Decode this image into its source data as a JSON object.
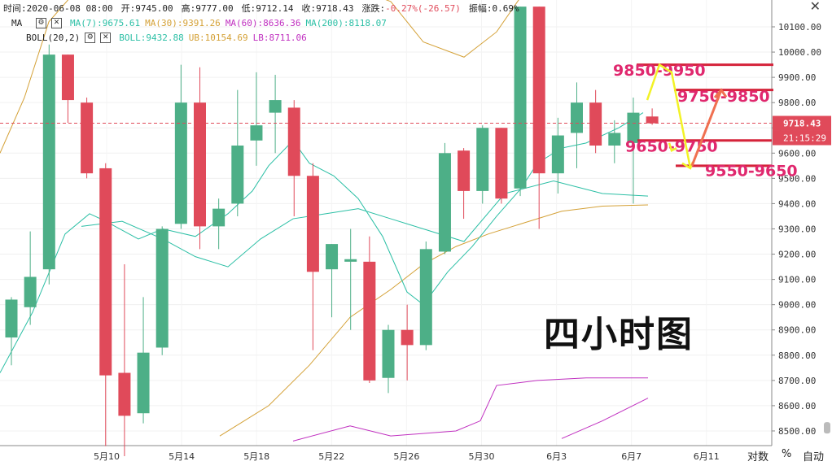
{
  "info": {
    "time_label": "时间:",
    "time": "2020-06-08 08:00",
    "open_label": "开:",
    "open": "9745.00",
    "high_label": "高:",
    "high": "9777.00",
    "low_label": "低:",
    "low": "9712.14",
    "close_label": "收:",
    "close": "9718.43",
    "change_label": "涨跌:",
    "change": "-0.27%(-26.57)",
    "amplitude_label": "振幅:",
    "amplitude": "0.69%"
  },
  "ma_row": {
    "name": "MA",
    "ma7": "MA(7):9675.61",
    "ma30": "MA(30):9391.26",
    "ma60": "MA(60):8636.36",
    "ma200": "MA(200):8118.07"
  },
  "boll_row": {
    "name": "BOLL(20,2)",
    "boll": "BOLL:9432.88",
    "ub": "UB:10154.69",
    "lb": "LB:8711.06"
  },
  "overlay_title": "四小时图",
  "bottom": {
    "log": "对数",
    "percent": "%",
    "auto": "自动"
  },
  "price_tag": {
    "price": "9718.43",
    "time": "21:15:29"
  },
  "colors": {
    "up": "#4daf87",
    "down": "#e04a5a",
    "ma7": "#2bbfa5",
    "ma30": "#d4a137",
    "ma60": "#c030c0",
    "boll": "#d4a137",
    "annot_red": "#d5233a",
    "annot_text": "#e0286e",
    "arrow_yellow": "#f2f226",
    "arrow_orange": "#f07050"
  },
  "chart_data": {
    "type": "candlestick",
    "xlabels": [
      "5月10",
      "5月14",
      "5月18",
      "5月22",
      "5月26",
      "5月30",
      "6月3",
      "6月7",
      "6月11"
    ],
    "ylabels": [
      "10100.00",
      "10000.00",
      "9900.00",
      "9800.00",
      "9700.00",
      "9600.00",
      "9500.00",
      "9400.00",
      "9300.00",
      "9200.00",
      "9100.00",
      "9000.00",
      "8900.00",
      "8800.00",
      "8700.00",
      "8600.00",
      "8500.00"
    ],
    "yrange": [
      8440,
      10200
    ],
    "candles": [
      {
        "o": 8870,
        "h": 9030,
        "l": 8760,
        "c": 9020
      },
      {
        "o": 8990,
        "h": 9290,
        "l": 8920,
        "c": 9110
      },
      {
        "o": 9140,
        "h": 10030,
        "l": 9080,
        "c": 9990
      },
      {
        "o": 9990,
        "h": 9990,
        "l": 9720,
        "c": 9810
      },
      {
        "o": 9800,
        "h": 9820,
        "l": 9500,
        "c": 9520
      },
      {
        "o": 9540,
        "h": 9560,
        "l": 8440,
        "c": 8720
      },
      {
        "o": 8730,
        "h": 9160,
        "l": 8400,
        "c": 8560
      },
      {
        "o": 8570,
        "h": 9030,
        "l": 8530,
        "c": 8810
      },
      {
        "o": 8830,
        "h": 9310,
        "l": 8800,
        "c": 9300
      },
      {
        "o": 9320,
        "h": 9950,
        "l": 9300,
        "c": 9800
      },
      {
        "o": 9800,
        "h": 9940,
        "l": 9220,
        "c": 9310
      },
      {
        "o": 9310,
        "h": 9420,
        "l": 9220,
        "c": 9380
      },
      {
        "o": 9400,
        "h": 9850,
        "l": 9350,
        "c": 9630
      },
      {
        "o": 9650,
        "h": 9920,
        "l": 9550,
        "c": 9710
      },
      {
        "o": 9760,
        "h": 9910,
        "l": 9600,
        "c": 9810
      },
      {
        "o": 9780,
        "h": 9810,
        "l": 9350,
        "c": 9510
      },
      {
        "o": 9510,
        "h": 9560,
        "l": 8820,
        "c": 9130
      },
      {
        "o": 9140,
        "h": 9240,
        "l": 8950,
        "c": 9240
      },
      {
        "o": 9170,
        "h": 9300,
        "l": 8900,
        "c": 9180
      },
      {
        "o": 9170,
        "h": 9270,
        "l": 8690,
        "c": 8700
      },
      {
        "o": 8710,
        "h": 8920,
        "l": 8650,
        "c": 8900
      },
      {
        "o": 8900,
        "h": 9000,
        "l": 8700,
        "c": 8840
      },
      {
        "o": 8840,
        "h": 9250,
        "l": 8820,
        "c": 9220
      },
      {
        "o": 9210,
        "h": 9640,
        "l": 9200,
        "c": 9600
      },
      {
        "o": 9610,
        "h": 9620,
        "l": 9340,
        "c": 9450
      },
      {
        "o": 9450,
        "h": 9710,
        "l": 9400,
        "c": 9700
      },
      {
        "o": 9700,
        "h": 9700,
        "l": 9400,
        "c": 9420
      },
      {
        "o": 9460,
        "h": 10180,
        "l": 9430,
        "c": 10180
      },
      {
        "o": 10180,
        "h": 10180,
        "l": 9300,
        "c": 9520
      },
      {
        "o": 9520,
        "h": 9740,
        "l": 9440,
        "c": 9670
      },
      {
        "o": 9680,
        "h": 9880,
        "l": 9540,
        "c": 9800
      },
      {
        "o": 9800,
        "h": 9850,
        "l": 9600,
        "c": 9630
      },
      {
        "o": 9630,
        "h": 9730,
        "l": 9560,
        "c": 9680
      },
      {
        "o": 9640,
        "h": 9820,
        "l": 9400,
        "c": 9760
      },
      {
        "o": 9745,
        "h": 9777,
        "l": 9712,
        "c": 9718
      }
    ],
    "current_price": 9718.43,
    "annotations": [
      {
        "label": "9850-9950",
        "price": 9950
      },
      {
        "label": "9750-9850",
        "price": 9850
      },
      {
        "label": "9650-9750",
        "price": 9650
      },
      {
        "label": "9550-9650",
        "price": 9550
      }
    ]
  }
}
